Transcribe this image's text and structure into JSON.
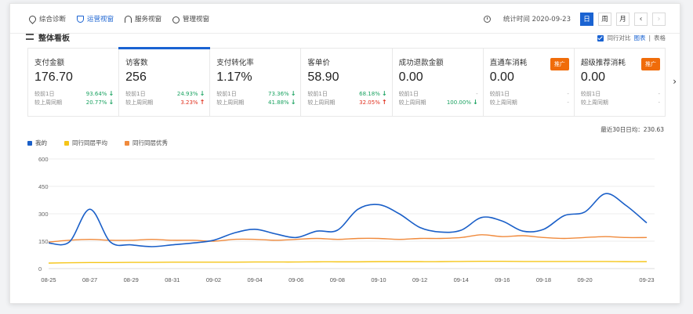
{
  "nav": {
    "items": [
      {
        "label": "综合诊断",
        "active": false
      },
      {
        "label": "运营视窗",
        "active": true
      },
      {
        "label": "服务视窗",
        "active": false
      },
      {
        "label": "管理视窗",
        "active": false
      }
    ]
  },
  "toolbar": {
    "stat_time": "统计时间 2020-09-23",
    "periods": [
      "日",
      "周",
      "月"
    ],
    "active_period": "日",
    "prev": "‹",
    "next": "›"
  },
  "section": {
    "title": "整体看板",
    "compare_label": "同行对比",
    "view_chart": "图表",
    "view_sep": "|",
    "view_table": "表格"
  },
  "cards": [
    {
      "title": "支付金额",
      "value": "176.70",
      "rows": [
        {
          "label": "较前1日",
          "value": "93.64%",
          "dir": "down"
        },
        {
          "label": "较上周同期",
          "value": "20.77%",
          "dir": "down"
        }
      ]
    },
    {
      "title": "访客数",
      "value": "256",
      "selected": true,
      "rows": [
        {
          "label": "较前1日",
          "value": "24.93%",
          "dir": "down"
        },
        {
          "label": "较上周同期",
          "value": "3.23%",
          "dir": "up"
        }
      ]
    },
    {
      "title": "支付转化率",
      "value": "1.17%",
      "rows": [
        {
          "label": "较前1日",
          "value": "73.36%",
          "dir": "down"
        },
        {
          "label": "较上周同期",
          "value": "41.88%",
          "dir": "down"
        }
      ]
    },
    {
      "title": "客单价",
      "value": "58.90",
      "rows": [
        {
          "label": "较前1日",
          "value": "68.18%",
          "dir": "down"
        },
        {
          "label": "较上周同期",
          "value": "32.05%",
          "dir": "up"
        }
      ]
    },
    {
      "title": "成功退款金额",
      "value": "0.00",
      "rows": [
        {
          "label": "较前1日",
          "value": "-",
          "dir": "none"
        },
        {
          "label": "较上周同期",
          "value": "100.00%",
          "dir": "down"
        }
      ]
    },
    {
      "title": "直通车消耗",
      "value": "0.00",
      "promo": "推广",
      "rows": [
        {
          "label": "较前1日",
          "value": "-",
          "dir": "none"
        },
        {
          "label": "较上周同期",
          "value": "-",
          "dir": "none"
        }
      ]
    },
    {
      "title": "超级推荐消耗",
      "value": "0.00",
      "promo": "推广",
      "rows": [
        {
          "label": "较前1日",
          "value": "-",
          "dir": "none"
        },
        {
          "label": "较上周同期",
          "value": "-",
          "dir": "none"
        }
      ]
    }
  ],
  "avg_label": "最近30日日均：230.63",
  "colors": {
    "mine": "#1a5fc8",
    "avg": "#f5c518",
    "excellent": "#f08a3c",
    "up": "#e0301e",
    "down": "#1aa260"
  },
  "chart_data": {
    "type": "line",
    "ylim": [
      0,
      600
    ],
    "yticks": [
      0,
      150,
      300,
      450,
      600
    ],
    "xticks": [
      "08-25",
      "08-27",
      "08-29",
      "08-31",
      "09-02",
      "09-04",
      "09-06",
      "09-08",
      "09-10",
      "09-12",
      "09-14",
      "09-16",
      "09-18",
      "09-20",
      "09-23"
    ],
    "x": [
      "08-25",
      "08-26",
      "08-27",
      "08-28",
      "08-29",
      "08-30",
      "08-31",
      "09-01",
      "09-02",
      "09-03",
      "09-04",
      "09-05",
      "09-06",
      "09-07",
      "09-08",
      "09-09",
      "09-10",
      "09-11",
      "09-12",
      "09-13",
      "09-14",
      "09-15",
      "09-16",
      "09-17",
      "09-18",
      "09-19",
      "09-20",
      "09-21",
      "09-22",
      "09-23"
    ],
    "series": [
      {
        "name": "我的",
        "color": "#1a5fc8",
        "values": [
          140,
          145,
          325,
          145,
          130,
          120,
          130,
          140,
          155,
          195,
          215,
          190,
          170,
          205,
          210,
          325,
          350,
          300,
          225,
          200,
          210,
          280,
          260,
          205,
          215,
          290,
          310,
          410,
          345,
          250
        ]
      },
      {
        "name": "同行同层平均",
        "color": "#f5c518",
        "values": [
          30,
          32,
          33,
          33,
          34,
          34,
          35,
          35,
          35,
          35,
          36,
          36,
          36,
          37,
          37,
          37,
          38,
          38,
          38,
          38,
          39,
          40,
          40,
          39,
          39,
          39,
          39,
          39,
          38,
          38
        ]
      },
      {
        "name": "同行同层优秀",
        "color": "#f08a3c",
        "values": [
          145,
          155,
          160,
          155,
          155,
          160,
          155,
          155,
          150,
          160,
          160,
          155,
          160,
          165,
          160,
          165,
          165,
          160,
          165,
          165,
          170,
          185,
          175,
          180,
          170,
          165,
          170,
          175,
          170,
          170
        ]
      }
    ]
  }
}
